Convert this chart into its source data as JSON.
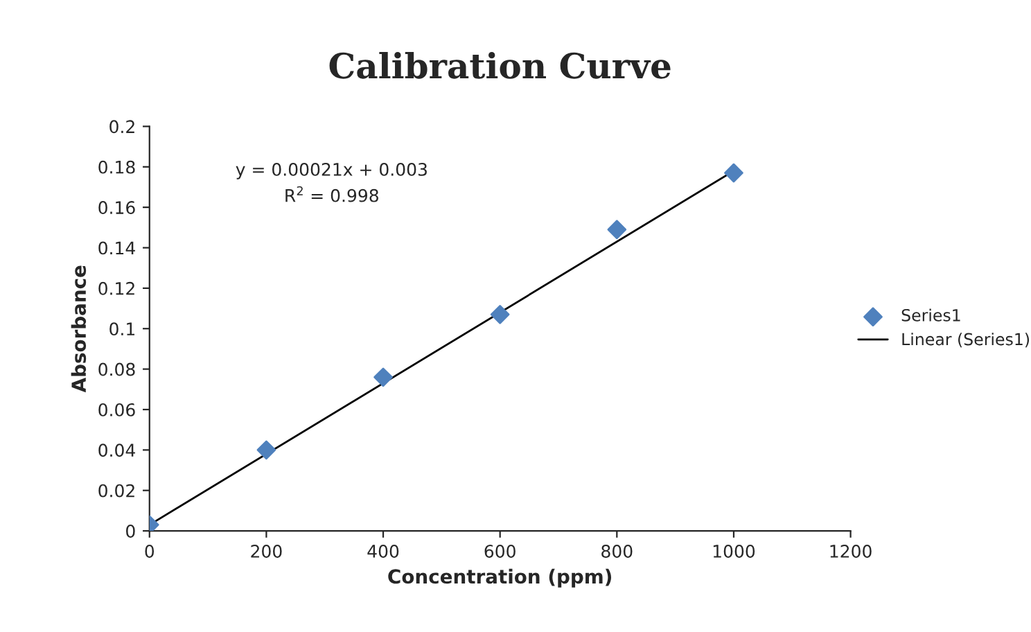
{
  "chart_data": {
    "type": "scatter",
    "title": "Calibration Curve",
    "xlabel": "Concentration (ppm)",
    "ylabel": "Absorbance",
    "x": [
      0,
      200,
      400,
      600,
      800,
      1000
    ],
    "series": [
      {
        "name": "Series1",
        "color": "#4f81bd",
        "marker": "diamond",
        "values": [
          0.003,
          0.04,
          0.076,
          0.107,
          0.149,
          0.177
        ]
      },
      {
        "name": "Linear (Series1)",
        "type": "line",
        "color": "#000000",
        "marker": "none",
        "line_style": "solid",
        "x": [
          0,
          1000
        ],
        "values": [
          0.003,
          0.178
        ]
      }
    ],
    "annotations": [
      "y = 0.00021x + 0.003",
      "R$^{2}$ = 0.998"
    ],
    "xlim": [
      0,
      1200
    ],
    "xticks": [
      0,
      200,
      400,
      600,
      800,
      1000,
      1200
    ],
    "ylim": [
      0,
      0.2
    ],
    "yticks": [
      0,
      0.02,
      0.04,
      0.06,
      0.08,
      0.1,
      0.12,
      0.14,
      0.16,
      0.18,
      0.2
    ],
    "grid": false,
    "legend": "right"
  }
}
